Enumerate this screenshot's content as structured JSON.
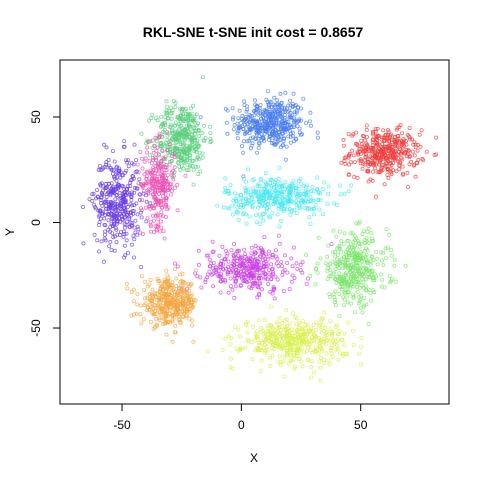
{
  "chart_data": {
    "type": "scatter",
    "title": "RKL-SNE t-SNE init cost = 0.8657",
    "xlabel": "X",
    "ylabel": "Y",
    "xlim": [
      -76,
      87
    ],
    "ylim": [
      -86,
      77
    ],
    "x_ticks": [
      -50,
      0,
      50
    ],
    "y_ticks": [
      -50,
      0,
      50
    ],
    "grid": false,
    "legend": "none",
    "marker": "open-circle",
    "series": [
      {
        "color": "#4a7df0",
        "center": [
          12,
          47
        ],
        "spread": [
          12,
          10
        ],
        "count": 420
      },
      {
        "color": "#f03c3c",
        "center": [
          60,
          33
        ],
        "spread": [
          12,
          9
        ],
        "count": 380
      },
      {
        "color": "#5acf7e",
        "center": [
          -25,
          40
        ],
        "spread": [
          9,
          14
        ],
        "count": 360
      },
      {
        "color": "#ee50b4",
        "center": [
          -35,
          18
        ],
        "spread": [
          6,
          16
        ],
        "count": 260
      },
      {
        "color": "#6a3ee6",
        "center": [
          -52,
          10
        ],
        "spread": [
          8,
          18
        ],
        "count": 360
      },
      {
        "color": "#4be8f0",
        "center": [
          15,
          12
        ],
        "spread": [
          18,
          8
        ],
        "count": 360
      },
      {
        "color": "#cc40e6",
        "center": [
          3,
          -22
        ],
        "spread": [
          16,
          9
        ],
        "count": 340
      },
      {
        "color": "#7ae66a",
        "center": [
          47,
          -22
        ],
        "spread": [
          12,
          14
        ],
        "count": 360
      },
      {
        "color": "#f5a640",
        "center": [
          -30,
          -38
        ],
        "spread": [
          10,
          9
        ],
        "count": 360
      },
      {
        "color": "#d8f04a",
        "center": [
          22,
          -56
        ],
        "spread": [
          18,
          9
        ],
        "count": 400
      }
    ]
  }
}
